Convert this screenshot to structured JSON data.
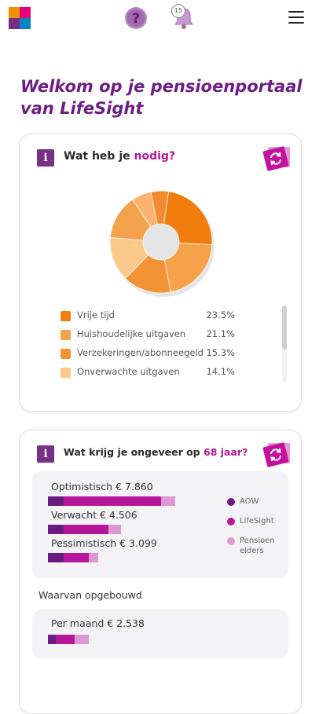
{
  "colors": {
    "brand_purple": "#6e1e84",
    "accent_magenta": "#b5169a",
    "aow": "#6a1b7e",
    "lifesight": "#b5169a",
    "pensioen_elders": "#dc98d2"
  },
  "header": {
    "logo_icon": "lifesight-logo-icon",
    "help_icon": "question-mark-icon",
    "notifications_icon": "bell-icon",
    "notification_count": "15",
    "menu_icon": "hamburger-menu-icon"
  },
  "welcome": {
    "line1": "Welkom op je pensioenportaal",
    "line2": "van LifeSight"
  },
  "needs_card": {
    "title_prefix": "Wat heb je ",
    "title_highlight": "nodig?",
    "chart_data": {
      "type": "pie",
      "categories": [
        "Vrije tijd",
        "Huishoudelijke uitgaven",
        "Verzekeringen/abonneegeld",
        "Onverwachte uitgaven"
      ],
      "values": [
        23.5,
        21.1,
        15.3,
        14.1
      ],
      "series": [
        {
          "name": "Vrije tijd",
          "value": 23.5,
          "color": "#f07d0e"
        },
        {
          "name": "Huishoudelijke uitgaven",
          "value": 21.1,
          "color": "#f6a24a"
        },
        {
          "name": "Verzekeringen/abonneegeld",
          "value": 15.3,
          "color": "#f39233"
        },
        {
          "name": "Onverwachte uitgaven",
          "value": 14.1,
          "color": "#fbc98a"
        },
        {
          "name": "",
          "value": 14.2,
          "color": "#f5a24f"
        },
        {
          "name": "",
          "value": 6.2,
          "color": "#fbb36e"
        },
        {
          "name": "",
          "value": 5.6,
          "color": "#f48a2f"
        }
      ]
    },
    "legend": [
      {
        "label": "Vrije tijd",
        "pct": "23.5%",
        "color": "#f07d0e"
      },
      {
        "label": "Huishoudelijke uitgaven",
        "pct": "21.1%",
        "color": "#f6a24a"
      },
      {
        "label": "Verzekeringen/abonneegeld",
        "pct": "15.3%",
        "color": "#f39233"
      },
      {
        "label": "Onverwachte uitgaven",
        "pct": "14.1%",
        "color": "#fbc98a"
      }
    ]
  },
  "income_card": {
    "title_prefix": "Wat krijg je ongeveer op ",
    "title_highlight": "68 jaar?",
    "scenarios": [
      {
        "label": "Optimistisch € 7.860",
        "aow": 20,
        "lifesight": 124,
        "elders": 18
      },
      {
        "label": "Verwacht € 4.506",
        "aow": 20,
        "lifesight": 57,
        "elders": 16
      },
      {
        "label": "Pessimistisch € 3.099",
        "aow": 20,
        "lifesight": 32,
        "elders": 12
      }
    ],
    "legend": [
      {
        "label": "AOW",
        "color": "#6a1b7e"
      },
      {
        "label": "LifeSight",
        "color": "#b5169a"
      },
      {
        "label": "Pensioen elders",
        "color": "#dc98d2"
      }
    ],
    "opgebouwd_label": "Waarvan opgebouwd",
    "per_maand": {
      "label": "Per maand € 2.538",
      "aow": 10,
      "lifesight": 24,
      "elders": 18
    }
  }
}
